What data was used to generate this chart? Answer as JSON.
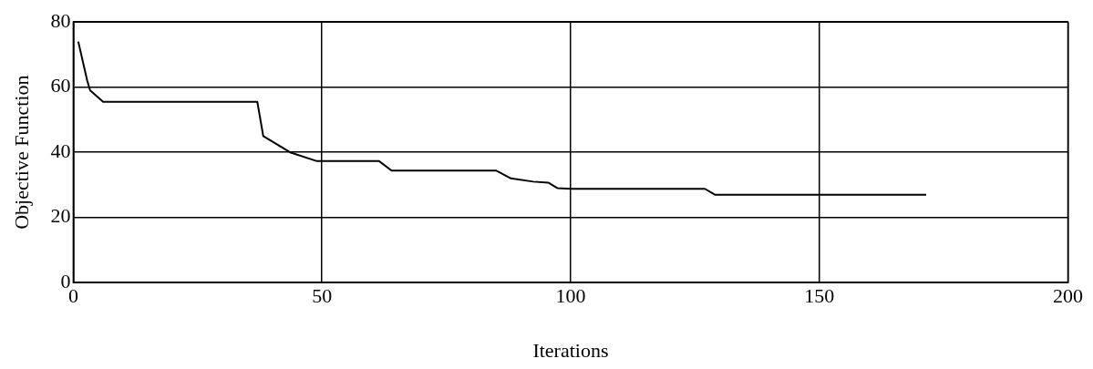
{
  "chart_data": {
    "type": "line",
    "xlabel": "Iterations",
    "ylabel": "Objective Function",
    "series": [
      {
        "color": "#000000",
        "x": [
          1,
          2.8,
          3.4,
          6,
          37,
          38.2,
          43.6,
          49,
          61.5,
          64,
          85,
          88,
          92.5,
          95.5,
          97.4,
          100,
          127,
          129,
          171.5
        ],
        "values": [
          74,
          62,
          59,
          55.5,
          55.5,
          45,
          40,
          37.3,
          37.3,
          34.4,
          34.4,
          32,
          31,
          30.7,
          29,
          28.8,
          28.8,
          27,
          27
        ]
      }
    ],
    "xlim": [
      0,
      200
    ],
    "xticks": [
      0,
      50,
      100,
      150,
      200
    ],
    "ylim": [
      0,
      80
    ],
    "yticks": [
      0,
      20,
      40,
      60,
      80
    ],
    "grid": true,
    "legend": false,
    "marker": "none",
    "line_style": "solid"
  }
}
